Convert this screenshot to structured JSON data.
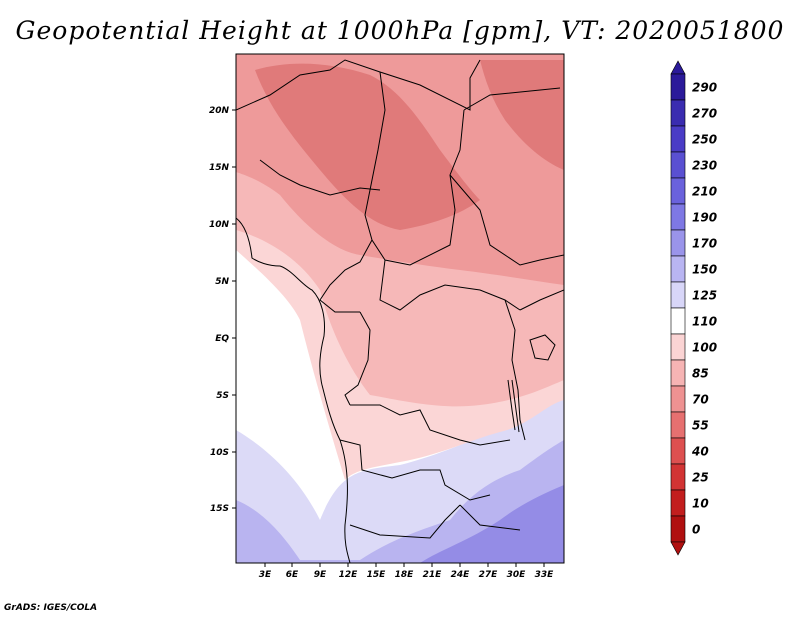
{
  "title": "Geopotential Height at 1000hPa [gpm], VT: 2020051800",
  "credit": "GrADS: IGES/COLA",
  "lat_labels": [
    "20N",
    "15N",
    "10N",
    "5N",
    "EQ",
    "5S",
    "10S",
    "15S"
  ],
  "lon_labels": [
    "3E",
    "6E",
    "9E",
    "12E",
    "15E",
    "18E",
    "21E",
    "24E",
    "27E",
    "30E",
    "33E"
  ],
  "colorbar": {
    "levels": [
      "290",
      "270",
      "250",
      "230",
      "210",
      "190",
      "170",
      "150",
      "125",
      "110",
      "100",
      "85",
      "70",
      "55",
      "40",
      "25",
      "10",
      "0"
    ],
    "colors": [
      "#2b1a9a",
      "#3a2cb0",
      "#4a3cc6",
      "#5a50d2",
      "#6a62dc",
      "#7e78e4",
      "#9a94ea",
      "#b9b5f2",
      "#d8d6f8",
      "#ffffff",
      "#fbd4d4",
      "#f6b4b4",
      "#ee9292",
      "#e67070",
      "#dd5050",
      "#d23434",
      "#c21e1e",
      "#b01010"
    ]
  },
  "field_colors": {
    "high": "#e07a7a",
    "mid": "#ee9a9a",
    "lowmid": "#f6b8b8",
    "low": "#fbd6d6",
    "zero": "#ffffff",
    "neg1": "#dcdaf7",
    "neg2": "#b9b4f0",
    "neg3": "#948ce6"
  }
}
